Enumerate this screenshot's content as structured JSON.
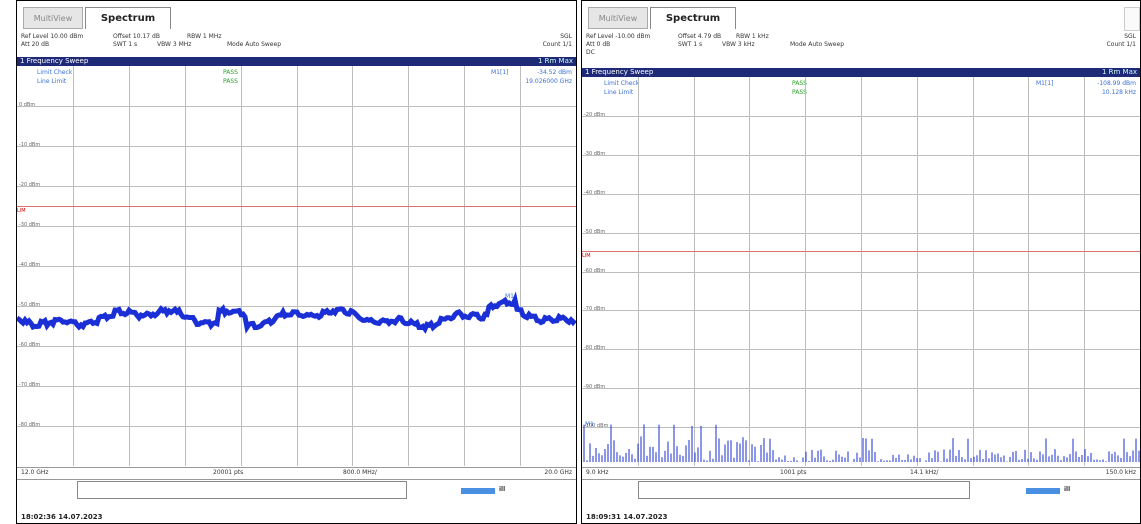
{
  "left": {
    "tab_inactive": "MultiView",
    "tab_active": "Spectrum",
    "info": {
      "ref_level": "Ref Level 10.00 dBm",
      "offset": "Offset 10.17 dB",
      "rbw": "RBW 1 MHz",
      "att": "Att 20 dB",
      "swt": "SWT 1 s",
      "vbw": "VBW 3 MHz",
      "mode": "Mode Auto Sweep",
      "sgl": "SGL",
      "count": "Count 1/1"
    },
    "sweep_title": "1 Frequency Sweep",
    "sweep_right": "1 Rm Max",
    "m1_label": "M1[1]",
    "m1_value": "-34.52 dBm",
    "m1_freq": "19.026000 GHz",
    "limit_check": "Limit Check",
    "limit_check_val": "PASS",
    "line_limit": "Line Limit",
    "line_limit_val": "PASS",
    "y_labels": [
      "0 dBm",
      "-10 dBm",
      "-20 dBm",
      "-30 dBm",
      "-40 dBm",
      "-50 dBm",
      "-60 dBm",
      "-70 dBm",
      "-80 dBm"
    ],
    "limit_tag": "LIM",
    "x_start": "12.0 GHz",
    "x_points": "20001 pts",
    "x_div": "800.0 MHz/",
    "x_stop": "20.0 GHz",
    "timestamp": "18:02:36  14.07.2023",
    "progress_label": "ill",
    "trace_color": "#1a2fd6"
  },
  "right": {
    "tab_inactive": "MultiView",
    "tab_active": "Spectrum",
    "info": {
      "ref_level": "Ref Level -10.00 dBm",
      "offset": "Offset 4.79 dB",
      "rbw": "RBW 1 kHz",
      "att": "Att 0 dB",
      "swt": "SWT 1 s",
      "vbw": "VBW 3 kHz",
      "mode": "Mode Auto Sweep",
      "sgl": "SGL",
      "count": "Count 1/1",
      "dc": "DC"
    },
    "sweep_title": "1 Frequency Sweep",
    "sweep_right": "1 Rm Max",
    "m1_label": "M1[1]",
    "m1_value": "-108.99 dBm",
    "m1_freq": "10.128 kHz",
    "limit_check": "Limit Check",
    "limit_check_val": "PASS",
    "line_limit": "Line Limit",
    "line_limit_val": "PASS",
    "y_labels": [
      "-20 dBm",
      "-30 dBm",
      "-40 dBm",
      "-50 dBm",
      "-60 dBm",
      "-70 dBm",
      "-80 dBm",
      "-90 dBm",
      "-100 dBm"
    ],
    "limit_tag": "LIM",
    "x_start": "9.0 kHz",
    "x_points": "1001 pts",
    "x_div": "14.1 kHz/",
    "x_stop": "150.0 kHz",
    "timestamp": "18:09:31  14.07.2023",
    "progress_label": "ill",
    "trace_color": "#1a2fd6"
  }
}
